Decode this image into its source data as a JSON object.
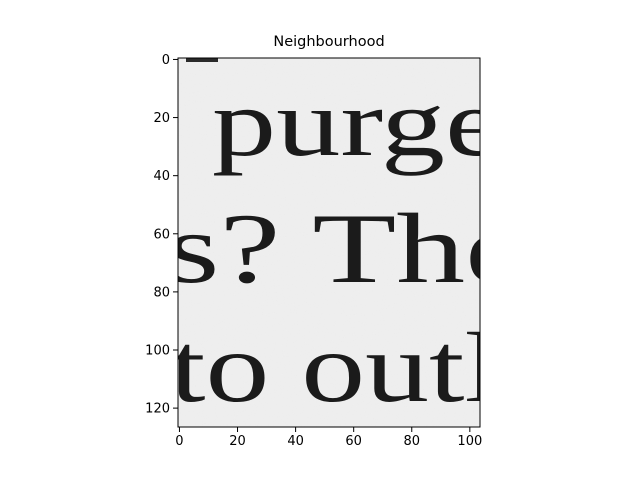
{
  "figure": {
    "title": "Neighbourhood"
  },
  "image": {
    "description_lines": [
      {
        "text": "purge"
      },
      {
        "text": "s? The"
      },
      {
        "text": "to outl"
      }
    ],
    "background_color": "#f0f0f0",
    "ink_color": "#1b1b1b"
  },
  "axes": {
    "x_ticks": [
      "0",
      "20",
      "40",
      "60",
      "80",
      "100"
    ],
    "y_ticks": [
      "0",
      "20",
      "40",
      "60",
      "80",
      "100",
      "120"
    ],
    "x_range": [
      0,
      104
    ],
    "y_range": [
      0,
      127
    ]
  }
}
